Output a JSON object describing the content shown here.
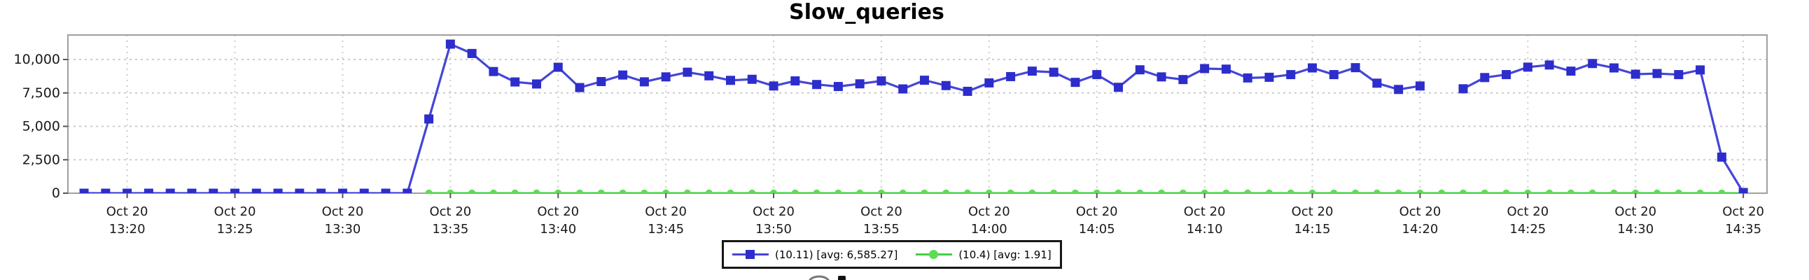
{
  "chart_data": {
    "type": "line",
    "title": "Slow_queries",
    "x_axis": {
      "date_label": "Oct 20",
      "tick_times": [
        "13:20",
        "13:25",
        "13:30",
        "13:35",
        "13:40",
        "13:45",
        "13:50",
        "13:55",
        "14:00",
        "14:05",
        "14:10",
        "14:15",
        "14:20",
        "14:25",
        "14:30",
        "14:35"
      ],
      "tick_interval_min": 5,
      "pad_left_min": 2.75,
      "pad_right_min": 1.1
    },
    "y_axis": {
      "tick_labels": [
        "0",
        "2,500",
        "5,000",
        "7,500",
        "10,000"
      ],
      "tick_values": [
        0,
        2500,
        5000,
        7500,
        10000
      ],
      "ylim": [
        0,
        11830
      ]
    },
    "grid": true,
    "legend": {
      "position": "bottom-center",
      "border": true,
      "items": [
        {
          "label": "(10.11) [avg: 6,585.27]",
          "marker": "square",
          "color": "#2d2dcc",
          "line_color": "#4545d8"
        },
        {
          "label": "(10.4) [avg: 1.91]",
          "marker": "circle",
          "color": "#5edc55",
          "line_color": "#45cf45"
        }
      ]
    },
    "series": [
      {
        "name": "(10.11) [avg: 6,585.27]",
        "marker": "square",
        "marker_color": "#2d2dcc",
        "line_color": "#4545d8",
        "points": [
          [
            "13:18",
            0
          ],
          [
            "13:19",
            0
          ],
          [
            "13:20",
            0
          ],
          [
            "13:21",
            0
          ],
          [
            "13:22",
            0
          ],
          [
            "13:23",
            0
          ],
          [
            "13:24",
            0
          ],
          [
            "13:25",
            0
          ],
          [
            "13:26",
            0
          ],
          [
            "13:27",
            0
          ],
          [
            "13:28",
            0
          ],
          [
            "13:29",
            0
          ],
          [
            "13:30",
            0
          ],
          [
            "13:31",
            0
          ],
          [
            "13:32",
            0
          ],
          [
            "13:33",
            0
          ],
          [
            "13:34",
            5550
          ],
          [
            "13:35",
            11150
          ],
          [
            "13:36",
            10450
          ],
          [
            "13:37",
            9100
          ],
          [
            "13:38",
            8320
          ],
          [
            "13:39",
            8170
          ],
          [
            "13:40",
            9420
          ],
          [
            "13:41",
            7900
          ],
          [
            "13:42",
            8350
          ],
          [
            "13:43",
            8840
          ],
          [
            "13:44",
            8330
          ],
          [
            "13:45",
            8700
          ],
          [
            "13:46",
            9050
          ],
          [
            "13:47",
            8780
          ],
          [
            "13:48",
            8440
          ],
          [
            "13:49",
            8520
          ],
          [
            "13:50",
            8020
          ],
          [
            "13:51",
            8400
          ],
          [
            "13:52",
            8130
          ],
          [
            "13:53",
            7980
          ],
          [
            "13:54",
            8180
          ],
          [
            "13:55",
            8400
          ],
          [
            "13:56",
            7800
          ],
          [
            "13:57",
            8450
          ],
          [
            "13:58",
            8050
          ],
          [
            "13:59",
            7620
          ],
          [
            "14:00",
            8250
          ],
          [
            "14:01",
            8720
          ],
          [
            "14:02",
            9130
          ],
          [
            "14:03",
            9050
          ],
          [
            "14:04",
            8290
          ],
          [
            "14:05",
            8870
          ],
          [
            "14:06",
            7920
          ],
          [
            "14:07",
            9230
          ],
          [
            "14:08",
            8700
          ],
          [
            "14:09",
            8500
          ],
          [
            "14:10",
            9320
          ],
          [
            "14:11",
            9280
          ],
          [
            "14:12",
            8620
          ],
          [
            "14:13",
            8670
          ],
          [
            "14:14",
            8870
          ],
          [
            "14:15",
            9370
          ],
          [
            "14:16",
            8870
          ],
          [
            "14:17",
            9390
          ],
          [
            "14:18",
            8230
          ],
          [
            "14:19",
            7760
          ],
          [
            "14:20",
            8020
          ],
          [
            "14:21",
            null
          ],
          [
            "14:22",
            7810
          ],
          [
            "14:23",
            8650
          ],
          [
            "14:24",
            8870
          ],
          [
            "14:25",
            9430
          ],
          [
            "14:26",
            9590
          ],
          [
            "14:27",
            9130
          ],
          [
            "14:28",
            9700
          ],
          [
            "14:29",
            9370
          ],
          [
            "14:30",
            8900
          ],
          [
            "14:31",
            8950
          ],
          [
            "14:32",
            8870
          ],
          [
            "14:33",
            9220
          ],
          [
            "14:34",
            2700
          ],
          [
            "14:35",
            50
          ]
        ]
      },
      {
        "name": "(10.4) [avg: 1.91]",
        "marker": "circle",
        "marker_color": "#5edc55",
        "line_color": "#45cf45",
        "constant": {
          "t_start": "13:34",
          "t_end": "14:35",
          "interval_min": 1,
          "value": 0
        }
      }
    ],
    "colors": {
      "background": "#ffffff",
      "plot_border": "#a0a0a0",
      "grid": "#cccccc",
      "text": "#1a1a1a",
      "tick": "#555555"
    },
    "next_chart_title_clipped": true
  }
}
